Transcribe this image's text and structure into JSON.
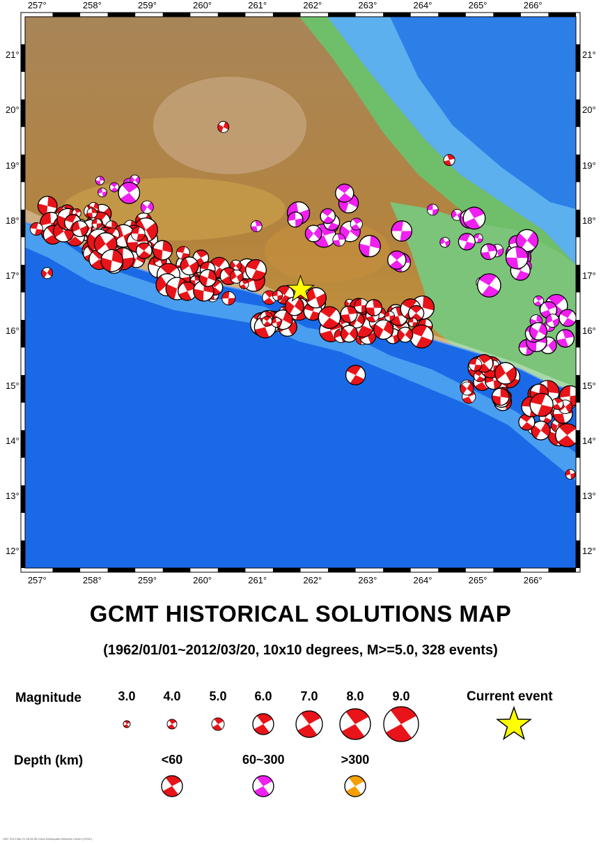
{
  "title": "GCMT HISTORICAL SOLUTIONS MAP",
  "subtitle": "(1962/01/01~2012/03/20, 10x10 degrees, M>=5.0, 328 events)",
  "map": {
    "lon_ticks": [
      "257°",
      "258°",
      "259°",
      "260°",
      "261°",
      "262°",
      "263°",
      "264°",
      "265°",
      "266°"
    ],
    "lat_ticks": [
      "21°",
      "20°",
      "19°",
      "18°",
      "17°",
      "16°",
      "15°",
      "14°",
      "13°",
      "12°"
    ],
    "current_event": {
      "lon": 261.8,
      "lat": 16.75
    }
  },
  "legend": {
    "magnitude_label": "Magnitude",
    "magnitudes": [
      "3.0",
      "4.0",
      "5.0",
      "6.0",
      "7.0",
      "8.0",
      "9.0"
    ],
    "current_event_label": "Current event",
    "depth_label": "Depth (km)",
    "depths": [
      {
        "label": "<60",
        "color": "#e8141a"
      },
      {
        "label": "60~300",
        "color": "#f020f0"
      },
      {
        "label": ">300",
        "color": "#f5a000"
      }
    ]
  },
  "colors": {
    "ocean_deep": "#1565e6",
    "ocean_shelf": "#5ab0f0",
    "lowland": "#6fbf73",
    "highland": "#b07a3a",
    "star": "#ffff00"
  },
  "footer": "GMT 2012 Mar 21 06:34:56   China Earthquake Networks Center (CENC)"
}
